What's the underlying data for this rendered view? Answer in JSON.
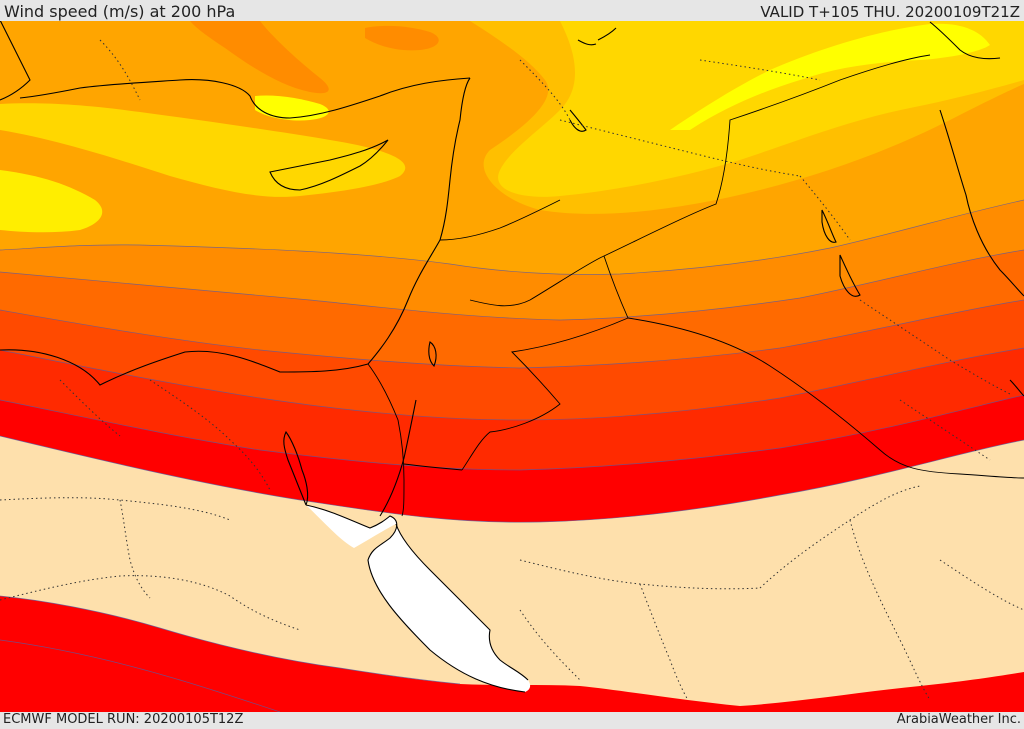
{
  "header": {
    "title": "Wind speed (m/s) at 200 hPa",
    "valid": "VALID T+105 THU. 20200109T21Z"
  },
  "footer": {
    "model_run": "ECMWF MODEL RUN: 20200105T12Z",
    "credit": "ArabiaWeather Inc."
  },
  "colors": {
    "calm": "#fee0ac",
    "band_25": "#ff0000",
    "band_30": "#ff2a00",
    "band_35": "#ff4a00",
    "band_40": "#ff6a00",
    "band_45": "#ff8c00",
    "band_50": "#ffa500",
    "band_55": "#ffbf00",
    "band_60": "#ffd700",
    "band_65": "#ffee00",
    "band_70": "#ffff00",
    "sea_mask": "#ffffff"
  }
}
